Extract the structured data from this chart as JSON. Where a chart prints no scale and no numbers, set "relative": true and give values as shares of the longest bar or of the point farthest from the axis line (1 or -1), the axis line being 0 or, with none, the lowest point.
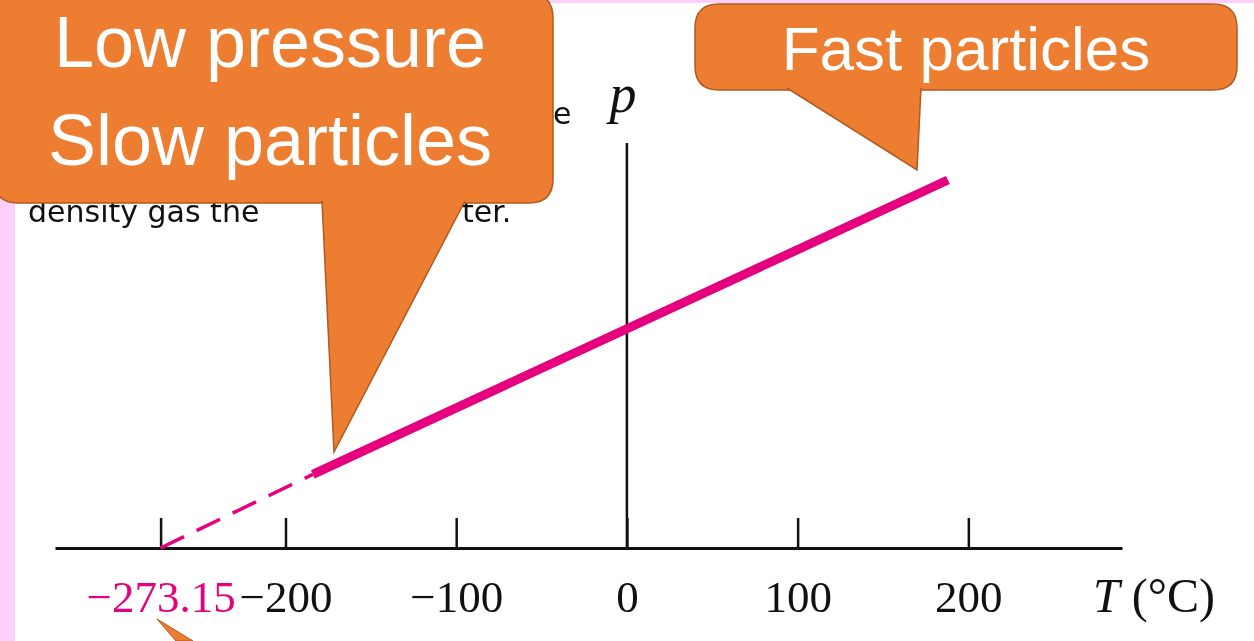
{
  "chart_data": {
    "type": "line",
    "relative": true,
    "xlabel": "T (°C)",
    "ylabel": "p",
    "xlim": [
      -335,
      290
    ],
    "xticks": [
      -273.15,
      -200,
      -100,
      0,
      100,
      200
    ],
    "tick_labels": "x",
    "series": [
      {
        "color": "#e6007e",
        "line_style": "dashed",
        "x": [
          -273.15,
          -184
        ],
        "values": [
          0,
          0.2
        ]
      },
      {
        "color": "#e6007e",
        "line_style": "solid",
        "x": [
          -184,
          188
        ],
        "values": [
          0.2,
          1
        ]
      }
    ],
    "annotations": [
      "Low pressure\nSlow particles",
      "Fast particles",
      "density gas the",
      "ter.",
      "e"
    ]
  }
}
